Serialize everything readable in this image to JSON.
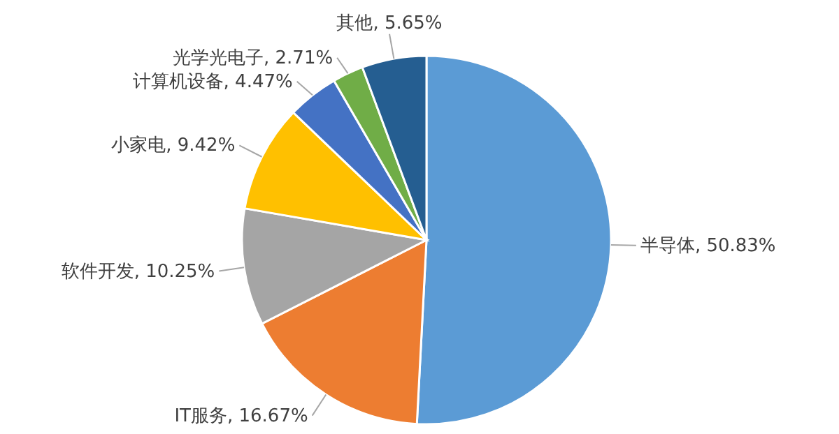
{
  "chart_data": {
    "type": "pie",
    "categories": [
      "半导体",
      "IT服务",
      "软件开发",
      "小家电",
      "计算机设备",
      "光学光电子",
      "其他"
    ],
    "values": [
      50.83,
      16.67,
      10.25,
      9.42,
      4.47,
      2.71,
      5.65
    ],
    "value_labels": [
      "50.83%",
      "16.67%",
      "10.25%",
      "9.42%",
      "4.47%",
      "2.71%",
      "5.65%"
    ],
    "colors": [
      "#5b9bd5",
      "#ed7d31",
      "#a5a5a5",
      "#ffc000",
      "#4472c4",
      "#70ad47",
      "#255e91"
    ],
    "legend": false
  }
}
